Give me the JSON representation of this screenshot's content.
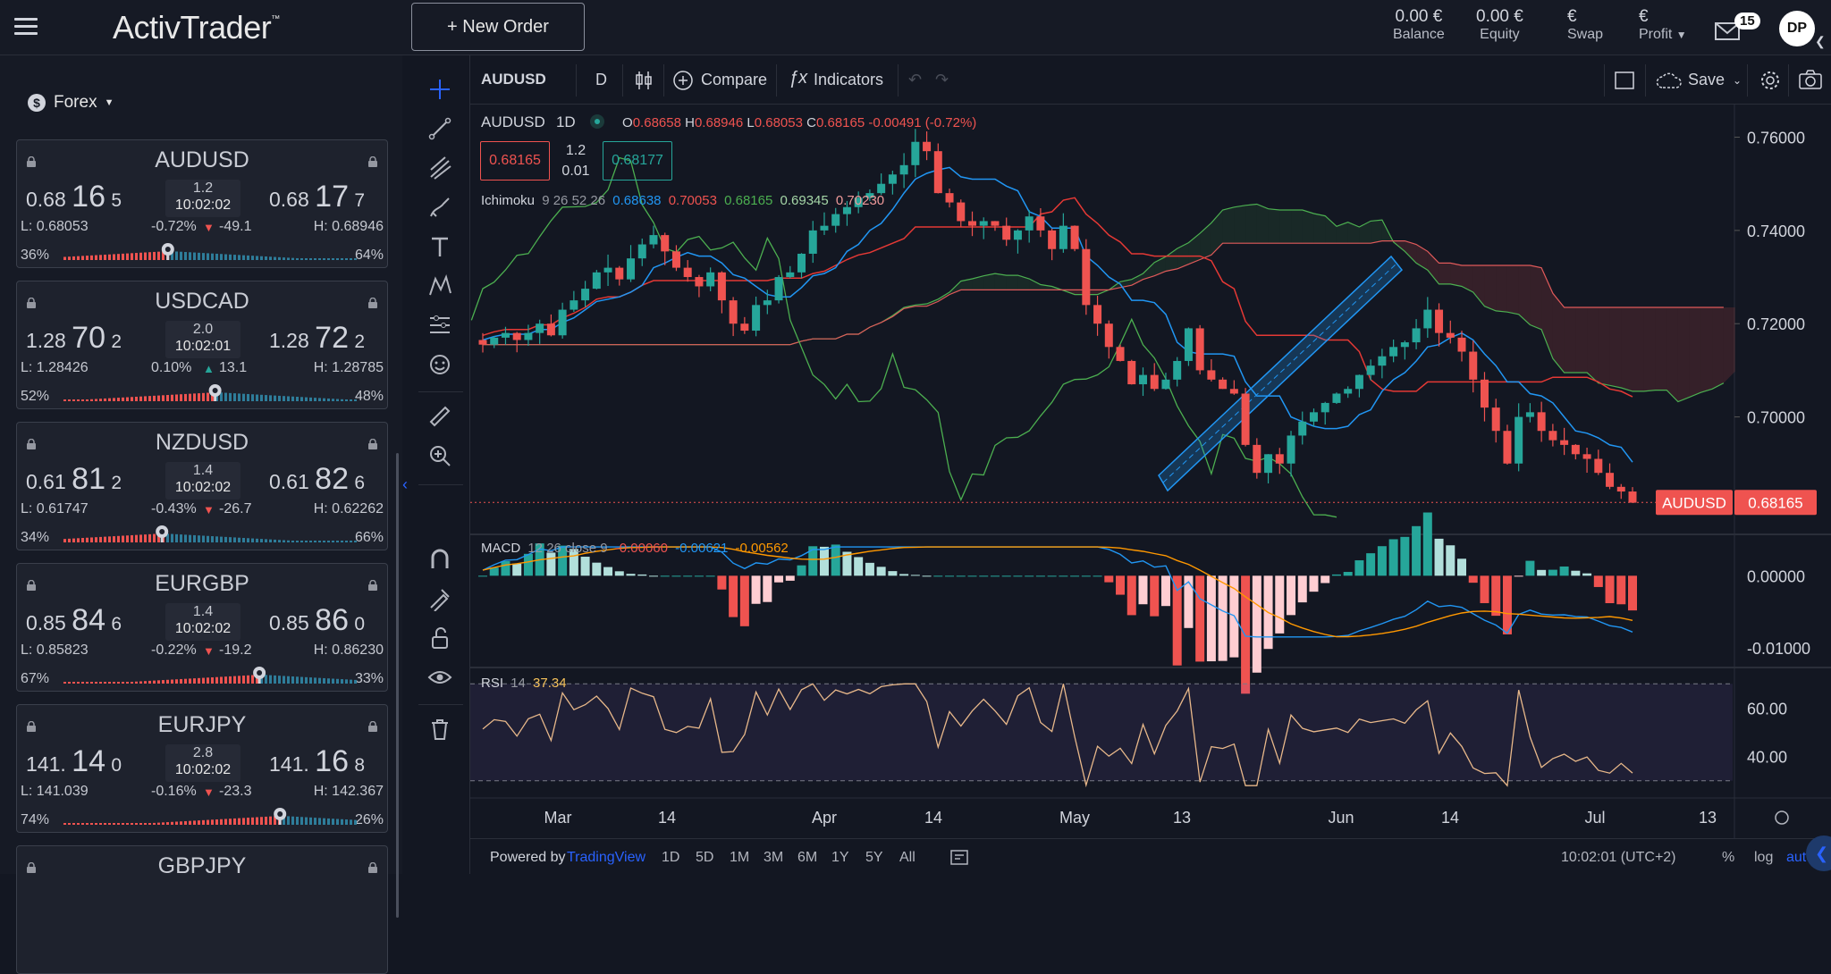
{
  "app": {
    "logo": "ActivTrader",
    "logo_tm": "™",
    "new_order": "+ New Order",
    "avatar": "DP",
    "mail_count": "15"
  },
  "account": [
    {
      "value": "0.00 €",
      "label": "Balance"
    },
    {
      "value": "0.00 €",
      "label": "Equity"
    },
    {
      "value": "€",
      "label": "Swap"
    },
    {
      "value": "€",
      "label": "Profit"
    }
  ],
  "sidebar": {
    "category": "Forex",
    "instruments": [
      {
        "symbol": "AUDUSD",
        "bid_pre": "0.68",
        "bid_big": "16",
        "bid_post": "5",
        "ask_pre": "0.68",
        "ask_big": "17",
        "ask_post": "7",
        "spread": "1.2",
        "time": "10:02:02",
        "low": "L: 0.68053",
        "change": "-0.72%",
        "points": "-49.1",
        "dir": "down",
        "high": "H: 0.68946",
        "sell_pct": "36%",
        "buy_pct": "64%",
        "sentiment": 0.36
      },
      {
        "symbol": "USDCAD",
        "bid_pre": "1.28",
        "bid_big": "70",
        "bid_post": "2",
        "ask_pre": "1.28",
        "ask_big": "72",
        "ask_post": "2",
        "spread": "2.0",
        "time": "10:02:01",
        "low": "L: 1.28426",
        "change": "0.10%",
        "points": "13.1",
        "dir": "up",
        "high": "H: 1.28785",
        "sell_pct": "52%",
        "buy_pct": "48%",
        "sentiment": 0.52
      },
      {
        "symbol": "NZDUSD",
        "bid_pre": "0.61",
        "bid_big": "81",
        "bid_post": "2",
        "ask_pre": "0.61",
        "ask_big": "82",
        "ask_post": "6",
        "spread": "1.4",
        "time": "10:02:02",
        "low": "L: 0.61747",
        "change": "-0.43%",
        "points": "-26.7",
        "dir": "down",
        "high": "H: 0.62262",
        "sell_pct": "34%",
        "buy_pct": "66%",
        "sentiment": 0.34
      },
      {
        "symbol": "EURGBP",
        "bid_pre": "0.85",
        "bid_big": "84",
        "bid_post": "6",
        "ask_pre": "0.85",
        "ask_big": "86",
        "ask_post": "0",
        "spread": "1.4",
        "time": "10:02:02",
        "low": "L: 0.85823",
        "change": "-0.22%",
        "points": "-19.2",
        "dir": "down",
        "high": "H: 0.86230",
        "sell_pct": "67%",
        "buy_pct": "33%",
        "sentiment": 0.67
      },
      {
        "symbol": "EURJPY",
        "bid_pre": "141.",
        "bid_big": "14",
        "bid_post": "0",
        "ask_pre": "141.",
        "ask_big": "16",
        "ask_post": "8",
        "spread": "2.8",
        "time": "10:02:02",
        "low": "L: 141.039",
        "change": "-0.16%",
        "points": "-23.3",
        "dir": "down",
        "high": "H: 142.367",
        "sell_pct": "74%",
        "buy_pct": "26%",
        "sentiment": 0.74
      },
      {
        "symbol": "GBPJPY"
      }
    ]
  },
  "chart_top": {
    "symbol": "AUDUSD",
    "interval": "D",
    "compare": "Compare",
    "indicators": "Indicators",
    "save": "Save"
  },
  "legend": {
    "symbol": "AUDUSD",
    "tf": "1D",
    "o_l": "O",
    "o": "0.68658",
    "h_l": "H",
    "h": "0.68946",
    "l_l": "L",
    "l": "0.68053",
    "c_l": "C",
    "c": "0.68165",
    "chg": "-0.00491 (-0.72%)",
    "sell": "0.68165",
    "spread": "1.2",
    "qty": "0.01",
    "buy": "0.68177",
    "ichi_name": "Ichimoku",
    "ichi_params": "9 26 52 26",
    "ichi_v1": "0.68638",
    "ichi_v2": "0.70053",
    "ichi_v3": "0.68165",
    "ichi_v4": "0.69345",
    "ichi_v5": "0.70230",
    "macd_name": "MACD",
    "macd_params": "12 26 close 9",
    "macd_v1": "-0.00060",
    "macd_v2": "-0.00621",
    "macd_v3": "-0.00562",
    "rsi_name": "RSI",
    "rsi_params": "14",
    "rsi_v": "37.34"
  },
  "axes": {
    "price_ticks": [
      "0.76000",
      "0.74000",
      "0.72000",
      "0.70000"
    ],
    "macd_ticks": [
      "0.00000",
      "-0.01000"
    ],
    "rsi_ticks": [
      "60.00",
      "40.00"
    ],
    "time_ticks": [
      "Mar",
      "14",
      "Apr",
      "14",
      "May",
      "13",
      "Jun",
      "14",
      "Jul",
      "13"
    ],
    "last_label": "AUDUSD",
    "last_price": "0.68165"
  },
  "bottom": {
    "powered": "Powered by",
    "tv": "TradingView",
    "ranges": [
      "1D",
      "5D",
      "1M",
      "3M",
      "6M",
      "1Y",
      "5Y",
      "All"
    ],
    "clock": "10:02:01 (UTC+2)",
    "pct": "%",
    "log": "log",
    "auto": "auto"
  },
  "chart_data": {
    "type": "candlestick",
    "symbol": "AUDUSD",
    "timeframe": "1D",
    "last": {
      "open": 0.68658,
      "high": 0.68946,
      "low": 0.68053,
      "close": 0.68165,
      "change": -0.00491,
      "change_pct": -0.72
    },
    "price_ylim": [
      0.675,
      0.767
    ],
    "closes": [
      0.7155,
      0.717,
      0.718,
      0.7165,
      0.718,
      0.72,
      0.7175,
      0.723,
      0.725,
      0.7275,
      0.731,
      0.732,
      0.7295,
      0.734,
      0.737,
      0.739,
      0.7355,
      0.732,
      0.73,
      0.728,
      0.731,
      0.725,
      0.72,
      0.7185,
      0.724,
      0.725,
      0.73,
      0.731,
      0.735,
      0.74,
      0.741,
      0.7435,
      0.745,
      0.747,
      0.748,
      0.75,
      0.752,
      0.754,
      0.759,
      0.757,
      0.748,
      0.746,
      0.742,
      0.741,
      0.742,
      0.741,
      0.738,
      0.74,
      0.743,
      0.74,
      0.736,
      0.741,
      0.736,
      0.724,
      0.72,
      0.715,
      0.712,
      0.707,
      0.709,
      0.706,
      0.708,
      0.712,
      0.719,
      0.71,
      0.708,
      0.706,
      0.705,
      0.694,
      0.688,
      0.692,
      0.69,
      0.696,
      0.699,
      0.701,
      0.703,
      0.705,
      0.706,
      0.709,
      0.711,
      0.713,
      0.715,
      0.716,
      0.719,
      0.723,
      0.718,
      0.717,
      0.714,
      0.708,
      0.702,
      0.697,
      0.69,
      0.7,
      0.701,
      0.697,
      0.695,
      0.694,
      0.692,
      0.691,
      0.688,
      0.685,
      0.684,
      0.6816
    ],
    "ichimoku": {
      "tenkan": 0.68638,
      "kijun": 0.70053,
      "chikou": 0.68165,
      "span_a": 0.69345,
      "span_b": 0.7023
    },
    "macd": {
      "params": "12 26 close 9",
      "hist": -0.0006,
      "macd": -0.00621,
      "signal": -0.00562,
      "ylim": [
        -0.0125,
        0.0055
      ]
    },
    "rsi": {
      "period": 14,
      "value": 37.34,
      "ylim": [
        24,
        76
      ],
      "bands": [
        30,
        70
      ]
    }
  }
}
